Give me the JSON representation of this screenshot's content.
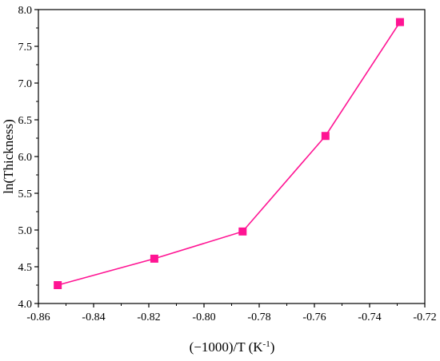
{
  "chart_data": {
    "type": "line",
    "x": [
      -0.853,
      -0.818,
      -0.786,
      -0.756,
      -0.729
    ],
    "series": [
      {
        "values": [
          4.25,
          4.61,
          4.98,
          6.28,
          7.83
        ],
        "color": "#ff1493",
        "marker": "square"
      }
    ],
    "xlabel": "(−1000)/T  (K",
    "xlabel_sup": "-1",
    "xlabel_tail": ")",
    "ylabel": "ln(Thickness)",
    "xlim": [
      -0.86,
      -0.72
    ],
    "ylim": [
      4.0,
      8.0
    ],
    "xticks": [
      "-0.86",
      "-0.84",
      "-0.82",
      "-0.80",
      "-0.78",
      "-0.76",
      "-0.74",
      "-0.72"
    ],
    "yticks": [
      "4.0",
      "4.5",
      "5.0",
      "5.5",
      "6.0",
      "6.5",
      "7.0",
      "7.5",
      "8.0"
    ],
    "grid": false,
    "legend": "none"
  }
}
